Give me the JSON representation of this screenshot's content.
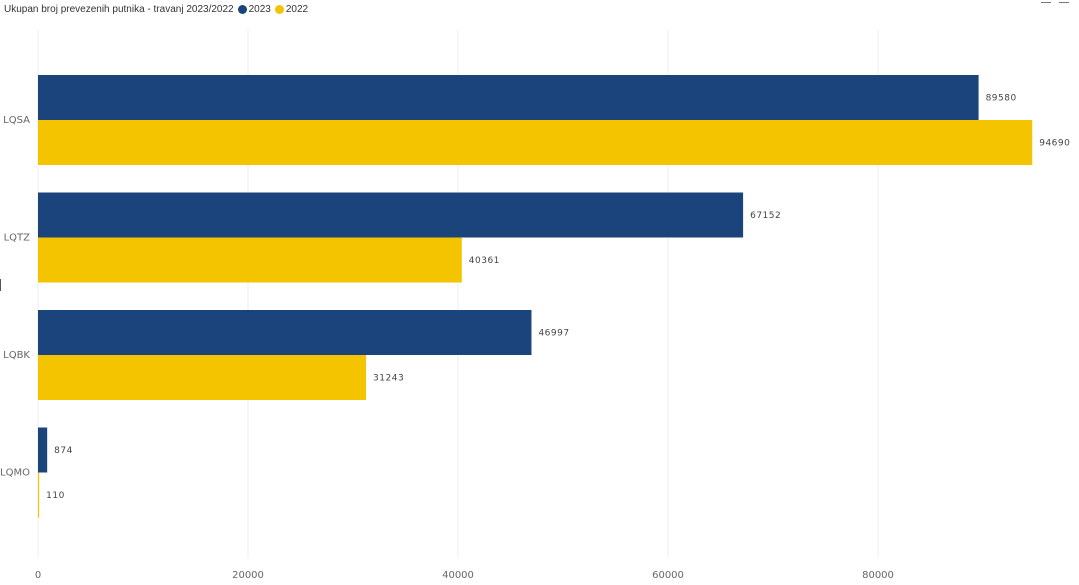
{
  "legend": {
    "title": "Ukupan broj prevezenih putnika - travanj 2023/2022"
  },
  "colors": {
    "s2023": "#1b437c",
    "s2022": "#f5c400",
    "grid": "#eeeeee"
  },
  "icons": [
    "edit-icon",
    "menu-icon"
  ],
  "chart_data": {
    "type": "bar",
    "orientation": "horizontal",
    "title": "Ukupan broj prevezenih putnika - travanj 2023/2022",
    "categories": [
      "LQSA",
      "LQTZ",
      "LQBK",
      "LQMO"
    ],
    "series": [
      {
        "name": "2023",
        "values": [
          89580,
          67152,
          46997,
          874
        ],
        "color": "#1b437c"
      },
      {
        "name": "2022",
        "values": [
          94690,
          40361,
          31243,
          110
        ],
        "color": "#f5c400"
      }
    ],
    "xticks": [
      0,
      20000,
      40000,
      60000,
      80000
    ],
    "xlim": [
      0,
      95000
    ],
    "grid": true,
    "data_labels": true,
    "legend_position": "top-left"
  }
}
